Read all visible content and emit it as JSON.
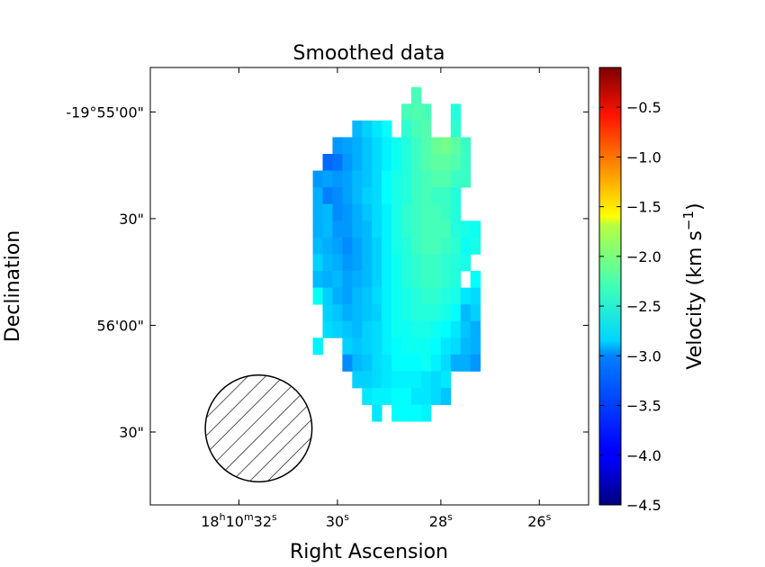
{
  "chart_data": {
    "type": "heatmap",
    "title": "Smoothed data",
    "xlabel": "Right Ascension",
    "ylabel": "Declination",
    "x_ticks": [
      {
        "sec": 32.2,
        "parts": [
          {
            "t": "18"
          },
          {
            "t": "h",
            "sup": true
          },
          {
            "t": "10"
          },
          {
            "t": "m",
            "sup": true
          },
          {
            "t": "32"
          },
          {
            "t": "s",
            "sup": true
          }
        ]
      },
      {
        "sec": 30.2,
        "parts": [
          {
            "t": "30"
          },
          {
            "t": "s",
            "sup": true
          }
        ]
      },
      {
        "sec": 28.1,
        "parts": [
          {
            "t": "28"
          },
          {
            "t": "s",
            "sup": true
          }
        ]
      },
      {
        "sec": 26.1,
        "parts": [
          {
            "t": "26"
          },
          {
            "t": "s",
            "sup": true
          }
        ]
      }
    ],
    "y_ticks": [
      {
        "offset_arcsec": 0,
        "label": "-19°55'00\""
      },
      {
        "offset_arcsec": 30,
        "label": "30\""
      },
      {
        "offset_arcsec": 60,
        "label": "56'00\""
      },
      {
        "offset_arcsec": 90,
        "label": "30\""
      }
    ],
    "ra_range_sec": [
      34.0,
      25.1
    ],
    "dec_offset_range_arcsec": [
      -12.5,
      110.5
    ],
    "grid": false,
    "colormap": "jet",
    "colorbar": {
      "label_main": "Velocity (km s",
      "label_sup": "−1",
      "label_end": ")",
      "vmin": -4.5,
      "vmax": -0.1,
      "ticks": [
        -0.5,
        -1.0,
        -1.5,
        -2.0,
        -2.5,
        -3.0,
        -3.5,
        -4.0,
        -4.5
      ],
      "tick_labels": [
        "−0.5",
        "−1.0",
        "−1.5",
        "−2.0",
        "−2.5",
        "−3.0",
        "−3.5",
        "−4.0",
        "−4.5"
      ]
    },
    "beam": {
      "ra_center_sec": 31.8,
      "dec_center_offset_arcsec": 89,
      "diameter_arcsec": 30,
      "hatched": true
    },
    "pixel_grid": {
      "ra_start_sec": 30.7,
      "ra_step_sec": -0.2,
      "dec_start_arcsec": -7,
      "dec_step_arcsec": 4.7,
      "note": "row r, col c (null = no data); velocity km/s",
      "rows": [
        [
          null,
          null,
          null,
          null,
          null,
          null,
          null,
          null,
          null,
          null,
          -2.55,
          null,
          null,
          null,
          null,
          null,
          null
        ],
        [
          null,
          null,
          null,
          null,
          null,
          null,
          null,
          null,
          null,
          -2.55,
          -2.5,
          -2.55,
          null,
          null,
          -2.7,
          null,
          null
        ],
        [
          null,
          null,
          null,
          null,
          -3.15,
          -3.05,
          -2.95,
          -2.85,
          null,
          -2.65,
          -2.55,
          -2.5,
          null,
          null,
          -2.65,
          null,
          null
        ],
        [
          null,
          null,
          -3.3,
          -3.25,
          -3.2,
          -3.1,
          -3.0,
          -2.9,
          -2.8,
          -2.7,
          -2.6,
          -2.5,
          -2.4,
          -2.35,
          -2.45,
          -2.6,
          null
        ],
        [
          null,
          -3.5,
          -3.45,
          -3.3,
          -3.2,
          -3.1,
          -3.0,
          -2.9,
          -2.8,
          -2.7,
          -2.6,
          -2.5,
          -2.45,
          -2.45,
          -2.5,
          -2.6,
          null
        ],
        [
          -3.3,
          -3.25,
          -3.3,
          -3.25,
          -3.15,
          -3.1,
          -3.0,
          -2.85,
          -2.75,
          -2.7,
          -2.6,
          -2.55,
          -2.5,
          -2.5,
          -2.6,
          -2.6,
          null
        ],
        [
          -3.2,
          -3.4,
          -3.35,
          -3.25,
          -3.15,
          -3.05,
          -3.0,
          -2.85,
          -2.75,
          -2.7,
          -2.6,
          -2.55,
          -2.6,
          -2.6,
          -2.7,
          null,
          null
        ],
        [
          -3.2,
          -3.15,
          -3.35,
          -3.3,
          -3.2,
          -3.1,
          -3.0,
          -2.9,
          -2.75,
          -2.65,
          -2.6,
          -2.55,
          -2.55,
          -2.6,
          -2.7,
          null,
          null
        ],
        [
          -3.2,
          -3.15,
          -3.3,
          -3.3,
          -3.2,
          -3.15,
          -3.0,
          -2.9,
          -2.75,
          -2.65,
          -2.6,
          -2.55,
          -2.55,
          -2.55,
          -2.7,
          -2.75,
          -2.8
        ],
        [
          -3.15,
          -3.2,
          -3.25,
          -3.35,
          -3.25,
          -3.15,
          -3.05,
          -2.9,
          -2.75,
          -2.7,
          -2.6,
          -2.55,
          -2.55,
          -2.6,
          -2.65,
          -2.8,
          -2.75
        ],
        [
          -3.05,
          -3.15,
          -3.2,
          -3.3,
          -3.25,
          -3.15,
          -3.05,
          -2.9,
          -2.8,
          -2.7,
          -2.65,
          -2.6,
          -2.6,
          -2.65,
          -2.7,
          -2.75,
          null
        ],
        [
          -3.15,
          -3.2,
          -3.15,
          -3.25,
          -3.2,
          -3.15,
          -3.05,
          -2.9,
          -2.8,
          -2.7,
          -2.65,
          -2.6,
          -2.6,
          -2.65,
          -2.7,
          null,
          -2.85
        ],
        [
          -2.8,
          -3.05,
          -3.2,
          -3.25,
          -3.15,
          -3.1,
          -3.0,
          -2.9,
          -2.8,
          -2.75,
          -2.7,
          -2.65,
          -2.65,
          -2.7,
          -2.75,
          -2.95,
          -3.0
        ],
        [
          null,
          -3.05,
          -3.1,
          -3.2,
          -3.15,
          -3.1,
          -3.05,
          -2.9,
          -2.8,
          -2.75,
          -2.7,
          -2.7,
          -2.7,
          -2.75,
          -2.85,
          -3.15,
          -3.05
        ],
        [
          null,
          -3.0,
          -3.05,
          -3.1,
          -3.15,
          -3.05,
          -3.0,
          -2.9,
          -2.8,
          -2.8,
          -2.75,
          -2.75,
          -2.8,
          -2.85,
          -2.95,
          -3.1,
          -3.2
        ],
        [
          -2.9,
          null,
          null,
          -3.05,
          -3.1,
          -3.05,
          -3.0,
          -2.9,
          -2.85,
          -2.8,
          -2.8,
          -2.8,
          -2.85,
          -2.95,
          -3.0,
          -3.15,
          -3.2
        ],
        [
          null,
          null,
          null,
          -3.35,
          -3.15,
          -3.1,
          -3.0,
          -2.95,
          -2.85,
          -2.85,
          -2.85,
          -2.8,
          -2.9,
          -3.0,
          -3.2,
          -3.2,
          -3.3
        ],
        [
          null,
          null,
          null,
          null,
          -3.05,
          -3.05,
          -3.0,
          -2.95,
          -2.9,
          -2.9,
          -2.9,
          -2.95,
          -3.0,
          -2.95,
          null,
          null,
          null
        ],
        [
          null,
          null,
          null,
          null,
          null,
          -2.95,
          -2.9,
          -2.9,
          -2.85,
          -2.85,
          -2.95,
          -2.95,
          -3.0,
          -3.1,
          null,
          null,
          null
        ],
        [
          null,
          null,
          null,
          null,
          null,
          null,
          -2.95,
          null,
          -2.85,
          -2.85,
          -2.85,
          -2.9,
          null,
          null,
          null,
          null,
          null
        ]
      ]
    }
  }
}
